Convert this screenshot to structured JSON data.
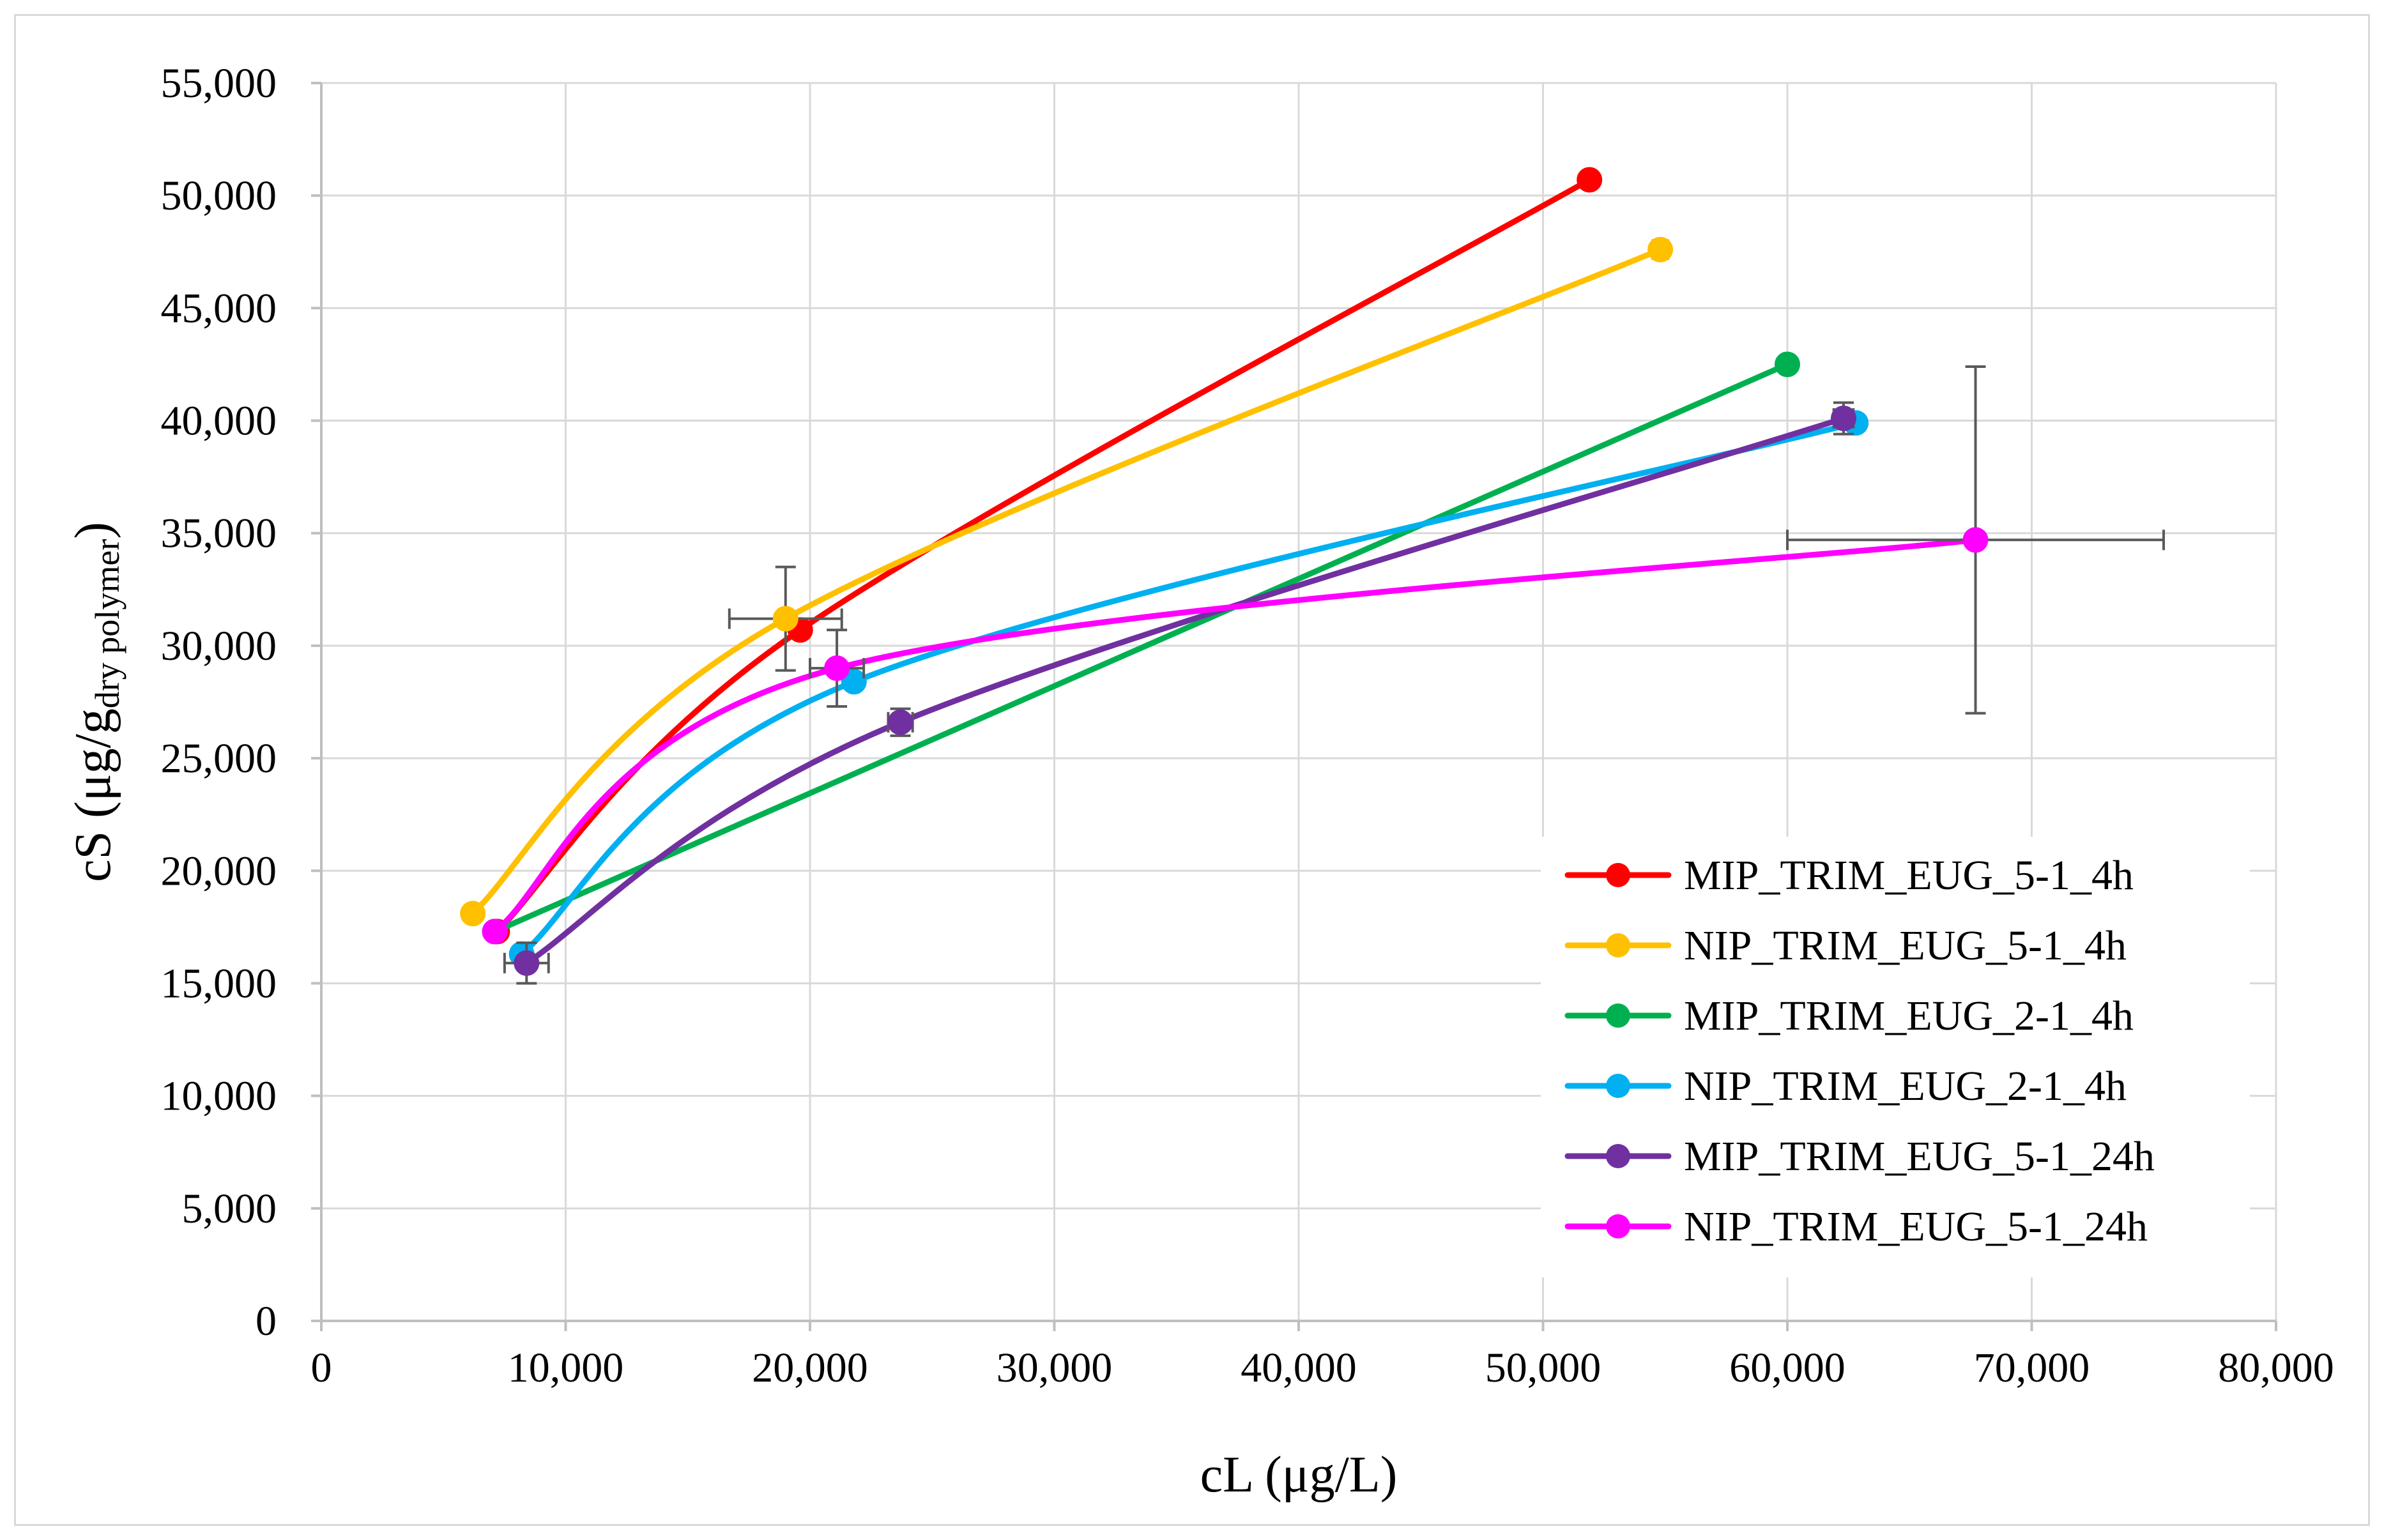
{
  "chart_data": {
    "type": "scatter",
    "style": "smooth-line-with-markers",
    "title": "",
    "xlabel": "cL (μg/L)",
    "ylabel": {
      "main": "cS (μg/g",
      "subscript": "dry polymer",
      "close": ")"
    },
    "xlim": [
      0,
      80000
    ],
    "ylim": [
      0,
      55000
    ],
    "x_ticks": [
      0,
      10000,
      20000,
      30000,
      40000,
      50000,
      60000,
      70000,
      80000
    ],
    "y_ticks": [
      0,
      5000,
      10000,
      15000,
      20000,
      25000,
      30000,
      35000,
      40000,
      45000,
      50000,
      55000
    ],
    "x_tick_labels": [
      "0",
      "10,000",
      "20,000",
      "30,000",
      "40,000",
      "50,000",
      "60,000",
      "70,000",
      "80,000"
    ],
    "y_tick_labels": [
      "0",
      "5,000",
      "10,000",
      "15,000",
      "20,000",
      "25,000",
      "30,000",
      "35,000",
      "40,000",
      "45,000",
      "50,000",
      "55,000"
    ],
    "grid": true,
    "legend_position": "bottom-right",
    "series": [
      {
        "name": "MIP_TRIM_EUG_5-1_4h",
        "color": "#ff0000",
        "x": [
          7200,
          19600,
          51900
        ],
        "y": [
          17300,
          30700,
          50700
        ],
        "x_err": [
          0,
          0,
          0
        ],
        "y_err": [
          0,
          0,
          0
        ]
      },
      {
        "name": "NIP_TRIM_EUG_5-1_4h",
        "color": "#ffc000",
        "x": [
          6200,
          19000,
          54800
        ],
        "y": [
          18100,
          31200,
          47600
        ],
        "x_err": [
          0,
          2300,
          300
        ],
        "y_err": [
          0,
          2300,
          0
        ]
      },
      {
        "name": "MIP_TRIM_EUG_2-1_4h",
        "color": "#00b050",
        "x": [
          7100,
          60000
        ],
        "y": [
          17300,
          42500
        ],
        "x_err": [
          0,
          0
        ],
        "y_err": [
          0,
          0
        ]
      },
      {
        "name": "NIP_TRIM_EUG_2-1_4h",
        "color": "#00b0f0",
        "x": [
          8200,
          21800,
          62800
        ],
        "y": [
          16300,
          28400,
          39900
        ],
        "x_err": [
          0,
          0,
          0
        ],
        "y_err": [
          0,
          0,
          0
        ]
      },
      {
        "name": "MIP_TRIM_EUG_5-1_24h",
        "color": "#7030a0",
        "x": [
          8400,
          23700,
          62300
        ],
        "y": [
          15900,
          26600,
          40100
        ],
        "x_err": [
          900,
          500,
          400
        ],
        "y_err": [
          900,
          600,
          700
        ]
      },
      {
        "name": "NIP_TRIM_EUG_5-1_24h",
        "color": "#ff00ff",
        "x": [
          7100,
          21100,
          67700
        ],
        "y": [
          17300,
          29000,
          34700
        ],
        "x_err": [
          0,
          1100,
          7700
        ],
        "y_err": [
          0,
          1700,
          7700
        ]
      }
    ]
  }
}
